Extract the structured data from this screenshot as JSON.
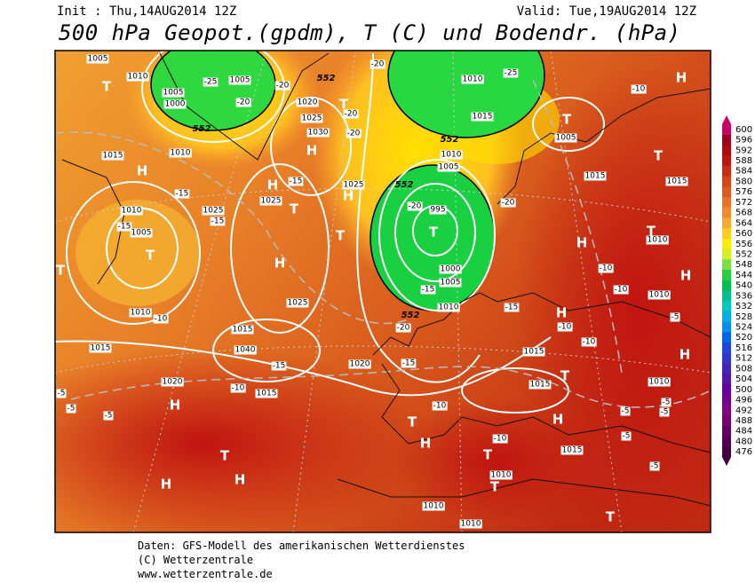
{
  "header": {
    "init": "Init : Thu,14AUG2014 12Z",
    "valid": "Valid: Tue,19AUG2014 12Z",
    "title": "500 hPa Geopot.(gpdm), T (C) und Bodendr. (hPa)"
  },
  "footer": [
    "Daten: GFS-Modell des amerikanischen Wetterdienstes",
    "(C) Wetterzentrale",
    "www.wetterzentrale.de"
  ],
  "colorbar": {
    "values": [
      600,
      596,
      592,
      588,
      584,
      580,
      576,
      572,
      568,
      564,
      560,
      556,
      552,
      548,
      544,
      540,
      536,
      532,
      528,
      524,
      520,
      516,
      512,
      508,
      504,
      500,
      496,
      492,
      488,
      484,
      480,
      476
    ],
    "colors": [
      "#cc0066",
      "#a0001e",
      "#b00a0a",
      "#c01410",
      "#cc2c12",
      "#d84418",
      "#e05a1e",
      "#e87226",
      "#f08a2e",
      "#f8aa30",
      "#ffcc20",
      "#ffec00",
      "#d4f020",
      "#78e040",
      "#28d040",
      "#00c050",
      "#00c092",
      "#00c8c4",
      "#00b0e4",
      "#0090f0",
      "#0064f0",
      "#2044e0",
      "#3434d0",
      "#4424c0",
      "#5414b0",
      "#6400a0",
      "#740094",
      "#840084",
      "#740074",
      "#640064",
      "#540054",
      "#440044"
    ]
  },
  "map": {
    "pressure_labels": [
      "1005",
      "1010",
      "1005",
      "1000",
      "1005",
      "1010",
      "1015",
      "1005",
      "1015",
      "1010",
      "1025",
      "1025",
      "1020",
      "1025",
      "1030",
      "1025",
      "1010",
      "1005",
      "995",
      "1010",
      "1005",
      "1000",
      "1005",
      "1010",
      "1010",
      "1025",
      "1015",
      "1040",
      "1015",
      "1020",
      "1015",
      "1020",
      "1015",
      "1015",
      "1010",
      "1010",
      "1010",
      "1015",
      "1015",
      "1015",
      "1010",
      "1010",
      "1010"
    ],
    "temperature_labels": [
      "-25",
      "-20",
      "-20",
      "-20",
      "-25",
      "-20",
      "-20",
      "-15",
      "-15",
      "-15",
      "-20",
      "-20",
      "-15",
      "-10",
      "-15",
      "-15",
      "-20",
      "-15",
      "-15",
      "-10",
      "-10",
      "-10",
      "-10",
      "-10",
      "-10",
      "-10",
      "-10",
      "-5",
      "-5",
      "-5",
      "-5",
      "-5",
      "-5",
      "-5",
      "-5",
      "-5"
    ],
    "height_labels": [
      "552",
      "552",
      "552",
      "552",
      "552"
    ],
    "centers": [
      "T",
      "T",
      "H",
      "T",
      "T",
      "H",
      "T",
      "H",
      "T",
      "H",
      "T",
      "T",
      "H",
      "H",
      "T",
      "H",
      "H",
      "T",
      "H",
      "H",
      "T",
      "H",
      "T",
      "H",
      "H",
      "T",
      "H",
      "T",
      "H",
      "T",
      "T"
    ]
  }
}
